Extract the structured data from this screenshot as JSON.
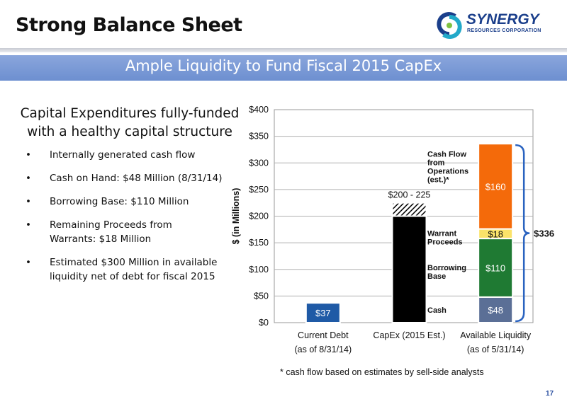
{
  "header": {
    "title": "Strong Balance Sheet",
    "logo_name": "SYNERGY",
    "logo_sub": "RESOURCES CORPORATION",
    "banner": "Ample Liquidity to Fund Fiscal 2015 CapEx",
    "page_number": "17"
  },
  "left": {
    "heading": "Capital Expenditures fully-funded with a healthy capital structure",
    "bullets": [
      "Internally generated cash flow",
      "Cash on Hand: $48 Million (8/31/14)",
      "Borrowing Base: $110 Million",
      "Remaining Proceeds from Warrants: $18 Million",
      "Estimated $300 Million in available liquidity net of debt for fiscal 2015"
    ]
  },
  "footnote": "* cash flow based on estimates by sell-side analysts",
  "chart_data": {
    "type": "bar",
    "stacked": true,
    "ylabel": "$ (in Millions)",
    "ylim": [
      0,
      400
    ],
    "yticks": [
      0,
      50,
      100,
      150,
      200,
      250,
      300,
      350,
      400
    ],
    "ytick_labels": [
      "$0",
      "$50",
      "$100",
      "$150",
      "$200",
      "$250",
      "$300",
      "$350",
      "$400"
    ],
    "grid": true,
    "categories": [
      {
        "label": "Current Debt",
        "sublabel": "(as of 8/31/14)"
      },
      {
        "label": "CapEx (2015 Est.)",
        "sublabel": ""
      },
      {
        "label": "Available Liquidity",
        "sublabel": "(as of 5/31/14)"
      }
    ],
    "bars": [
      {
        "category": 0,
        "segments": [
          {
            "value": 37,
            "label": "$37",
            "color": "#1f5aa6",
            "pattern": "solid"
          }
        ]
      },
      {
        "category": 1,
        "segments": [
          {
            "value": 200,
            "label": "",
            "color": "#000000",
            "pattern": "solid"
          },
          {
            "value": 25,
            "label": "",
            "color": "#000000",
            "pattern": "hatch"
          }
        ],
        "top_label": "$200 - 225"
      },
      {
        "category": 2,
        "segments": [
          {
            "value": 48,
            "label": "$48",
            "color": "#5b6f96",
            "pattern": "solid",
            "name": "Cash"
          },
          {
            "value": 110,
            "label": "$110",
            "color": "#1f7a33",
            "pattern": "solid",
            "name": "Borrowing Base"
          },
          {
            "value": 18,
            "label": "$18",
            "color": "#fbe36a",
            "pattern": "solid",
            "name": "Warrant Proceeds"
          },
          {
            "value": 160,
            "label": "$160",
            "color": "#f46a0a",
            "pattern": "solid",
            "name": "Cash Flow from Operations (est.)*"
          }
        ]
      }
    ],
    "segment_names": [
      {
        "text": "Cash",
        "value_at": 24
      },
      {
        "text": "Borrowing Base",
        "value_at": 96
      },
      {
        "text": "Warrant Proceeds",
        "value_at": 160
      },
      {
        "text": "Cash Flow from Operations (est.)*",
        "value_at": 293
      }
    ],
    "total_label": "$336",
    "brace_range": [
      0,
      336
    ]
  }
}
